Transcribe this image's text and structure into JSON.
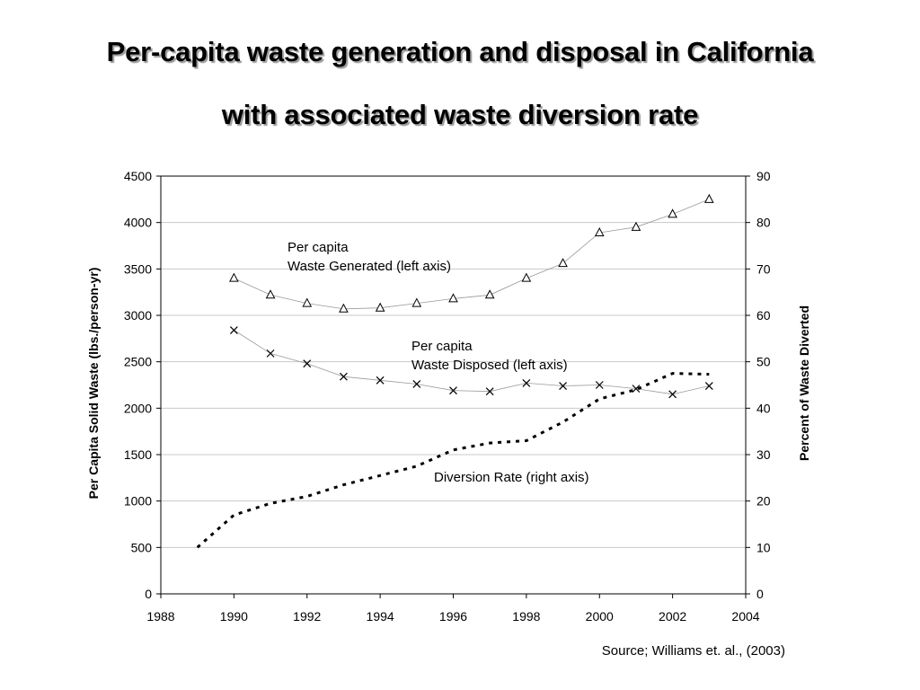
{
  "title_line1": "Per-capita waste generation and disposal in California",
  "title_line2": "with associated waste diversion rate",
  "source": "Source; Williams et. al., (2003)",
  "chart_data": {
    "type": "line",
    "x": [
      1989,
      1990,
      1991,
      1992,
      1993,
      1994,
      1995,
      1996,
      1997,
      1998,
      1999,
      2000,
      2001,
      2002,
      2003
    ],
    "xlim": [
      1988,
      2004
    ],
    "x_ticks": [
      1988,
      1990,
      1992,
      1994,
      1996,
      1998,
      2000,
      2002,
      2004
    ],
    "ylabel_left": "Per Capita Solid Waste (lbs./person-yr)",
    "ylim_left": [
      0,
      4500
    ],
    "yticks_left": [
      0,
      500,
      1000,
      1500,
      2000,
      2500,
      3000,
      3500,
      4000,
      4500
    ],
    "ylabel_right": "Percent of Waste Diverted",
    "ylim_right": [
      0,
      90
    ],
    "yticks_right": [
      0,
      10,
      20,
      30,
      40,
      50,
      60,
      70,
      80,
      90
    ],
    "grid": true,
    "series": [
      {
        "name": "Per capita Waste Generated (left axis)",
        "label_lines": [
          "Per capita",
          "Waste Generated (left axis)"
        ],
        "axis": "left",
        "marker": "triangle",
        "x": [
          1990,
          1991,
          1992,
          1993,
          1994,
          1995,
          1996,
          1997,
          1998,
          1999,
          2000,
          2001,
          2002,
          2003
        ],
        "values": [
          3400,
          3220,
          3130,
          3070,
          3080,
          3130,
          3180,
          3220,
          3400,
          3560,
          3890,
          3950,
          4090,
          4250
        ]
      },
      {
        "name": "Per capita Waste Disposed (left axis)",
        "label_lines": [
          "Per capita",
          "Waste Disposed (left axis)"
        ],
        "axis": "left",
        "marker": "x",
        "x": [
          1990,
          1991,
          1992,
          1993,
          1994,
          1995,
          1996,
          1997,
          1998,
          1999,
          2000,
          2001,
          2002,
          2003
        ],
        "values": [
          2840,
          2590,
          2480,
          2340,
          2300,
          2260,
          2190,
          2180,
          2270,
          2240,
          2250,
          2210,
          2150,
          2240
        ]
      },
      {
        "name": "Diversion Rate (right axis)",
        "label_lines": [
          "Diversion Rate (right axis)"
        ],
        "axis": "right",
        "marker": "none",
        "style": "dashed",
        "x": [
          1989,
          1990,
          1991,
          1992,
          1993,
          1994,
          1995,
          1996,
          1997,
          1998,
          1999,
          2000,
          2001,
          2002,
          2003
        ],
        "values": [
          10,
          17,
          19.5,
          21,
          23.5,
          25.5,
          27.5,
          31,
          32.5,
          33,
          37,
          42,
          44,
          47.5,
          47.3
        ]
      }
    ]
  }
}
